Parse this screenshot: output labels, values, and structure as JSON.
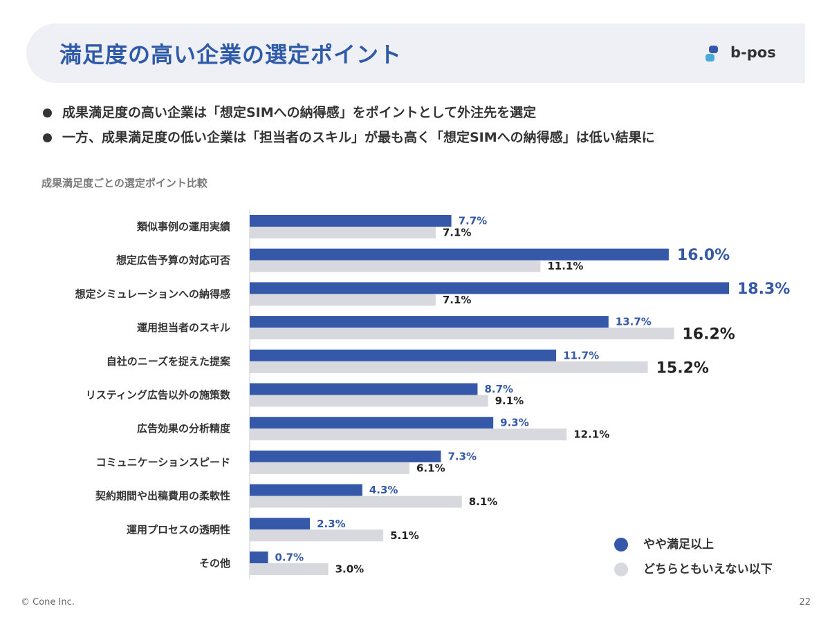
{
  "header": {
    "title": "満足度の高い企業の選定ポイント",
    "logo_text": "b-pos",
    "logo_icon": "b-pos-logo-icon"
  },
  "bullets": [
    "成果満足度の高い企業は「想定SIMへの納得感」をポイントとして外注先を選定",
    "一方、成果満足度の低い企業は「担当者のスキル」が最も高く「想定SIMへの納得感」は低い結果に"
  ],
  "chart_subtitle": "成果満足度ごとの選定ポイント比較",
  "legend": {
    "series_1": "やや満足以上",
    "series_2": "どちらともいえない以下"
  },
  "footer": {
    "copyright": "© Cone Inc.",
    "page_number": "22"
  },
  "colors": {
    "primary": "#3559a8",
    "secondary": "#d8d9de",
    "title": "#2e5aa8"
  },
  "chart_data": {
    "type": "bar",
    "orientation": "horizontal",
    "title": "成果満足度ごとの選定ポイント比較",
    "categories": [
      "類似事例の運用実績",
      "想定広告予算の対応可否",
      "想定シミュレーションへの納得感",
      "運用担当者のスキル",
      "自社のニーズを捉えた提案",
      "リスティング広告以外の施策数",
      "広告効果の分析精度",
      "コミュニケーションスピード",
      "契約期間や出稿費用の柔軟性",
      "運用プロセスの透明性",
      "その他"
    ],
    "series": [
      {
        "name": "やや満足以上",
        "values": [
          7.7,
          16.0,
          18.3,
          13.7,
          11.7,
          8.7,
          9.3,
          7.3,
          4.3,
          2.3,
          0.7
        ],
        "labels": [
          "7.7%",
          "16.0%",
          "18.3%",
          "13.7%",
          "11.7%",
          "8.7%",
          "9.3%",
          "7.3%",
          "4.3%",
          "2.3%",
          "0.7%"
        ]
      },
      {
        "name": "どちらともいえない以下",
        "values": [
          7.1,
          11.1,
          7.1,
          16.2,
          15.2,
          9.1,
          12.1,
          6.1,
          8.1,
          5.1,
          3.0
        ],
        "labels": [
          "7.1%",
          "11.1%",
          "7.1%",
          "16.2%",
          "15.2%",
          "9.1%",
          "12.1%",
          "6.1%",
          "8.1%",
          "5.1%",
          "3.0%"
        ]
      }
    ],
    "highlight": {
      "やや満足以上": [
        1,
        2
      ],
      "どちらともいえない以下": [
        3,
        4
      ]
    },
    "xlim": [
      0,
      18.3
    ],
    "xlabel": "",
    "ylabel": "",
    "grid": false,
    "legend_position": "bottom-right"
  }
}
